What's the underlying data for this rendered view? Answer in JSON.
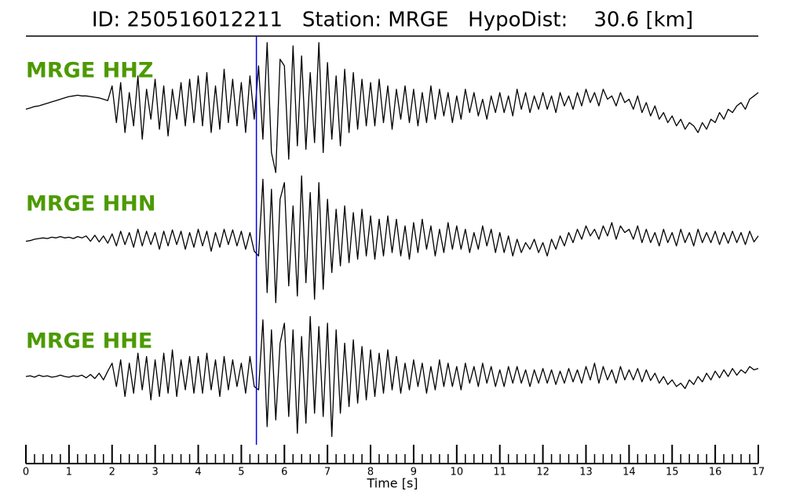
{
  "chart_data": {
    "type": "line",
    "title": "ID: 250516012211   Station: MRGE   HypoDist:    30.6 [km]",
    "x_label": "Time [s]",
    "xlim": [
      0,
      17
    ],
    "xticks": [
      0,
      1,
      2,
      3,
      4,
      5,
      6,
      7,
      8,
      9,
      10,
      11,
      12,
      13,
      14,
      15,
      16,
      17
    ],
    "xminor_step": 0.2,
    "ylim": [
      -100,
      100
    ],
    "vline_x": 5.35,
    "vline_color": "#0000ee",
    "label_color": "#4c9a00",
    "x": [
      0,
      0.1,
      0.2,
      0.3,
      0.4,
      0.5,
      0.6,
      0.7,
      0.8,
      0.9,
      1,
      1.1,
      1.2,
      1.3,
      1.4,
      1.5,
      1.6,
      1.7,
      1.8,
      1.9,
      2,
      2.1,
      2.2,
      2.3,
      2.4,
      2.5,
      2.6,
      2.7,
      2.8,
      2.9,
      3,
      3.1,
      3.2,
      3.3,
      3.4,
      3.5,
      3.6,
      3.7,
      3.8,
      3.9,
      4,
      4.1,
      4.2,
      4.3,
      4.4,
      4.5,
      4.6,
      4.7,
      4.8,
      4.9,
      5,
      5.1,
      5.2,
      5.3,
      5.4,
      5.5,
      5.6,
      5.7,
      5.8,
      5.9,
      6,
      6.1,
      6.2,
      6.3,
      6.4,
      6.5,
      6.6,
      6.7,
      6.8,
      6.9,
      7,
      7.1,
      7.2,
      7.3,
      7.4,
      7.5,
      7.6,
      7.7,
      7.8,
      7.9,
      8,
      8.1,
      8.2,
      8.3,
      8.4,
      8.5,
      8.6,
      8.7,
      8.8,
      8.9,
      9,
      9.1,
      9.2,
      9.3,
      9.4,
      9.5,
      9.6,
      9.7,
      9.8,
      9.9,
      10,
      10.1,
      10.2,
      10.3,
      10.4,
      10.5,
      10.6,
      10.7,
      10.8,
      10.9,
      11,
      11.1,
      11.2,
      11.3,
      11.4,
      11.5,
      11.6,
      11.7,
      11.8,
      11.9,
      12,
      12.1,
      12.2,
      12.3,
      12.4,
      12.5,
      12.6,
      12.7,
      12.8,
      12.9,
      13,
      13.1,
      13.2,
      13.3,
      13.4,
      13.5,
      13.6,
      13.7,
      13.8,
      13.9,
      14,
      14.1,
      14.2,
      14.3,
      14.4,
      14.5,
      14.6,
      14.7,
      14.8,
      14.9,
      15,
      15.1,
      15.2,
      15.3,
      15.4,
      15.5,
      15.6,
      15.7,
      15.8,
      15.9,
      16,
      16.1,
      16.2,
      16.3,
      16.4,
      16.5,
      16.6,
      16.7,
      16.8,
      16.9,
      17
    ],
    "series": [
      {
        "name": "MRGE HHZ",
        "color": "#000000",
        "values": [
          -5,
          -3,
          -1,
          0,
          2,
          4,
          6,
          8,
          10,
          12,
          14,
          15,
          16,
          15,
          15,
          14,
          13,
          12,
          10,
          8,
          30,
          -25,
          35,
          -40,
          20,
          -30,
          45,
          -50,
          25,
          -20,
          40,
          -35,
          30,
          -45,
          25,
          -20,
          35,
          -30,
          40,
          -25,
          45,
          -30,
          50,
          -40,
          30,
          -35,
          55,
          -25,
          40,
          -30,
          35,
          -40,
          45,
          -20,
          60,
          -50,
          95,
          -70,
          -100,
          70,
          60,
          -80,
          90,
          -60,
          75,
          -65,
          50,
          -55,
          95,
          -70,
          65,
          -50,
          45,
          -60,
          55,
          -40,
          50,
          -35,
          40,
          -30,
          35,
          -30,
          40,
          -25,
          30,
          -35,
          25,
          -20,
          30,
          -25,
          25,
          -30,
          20,
          -25,
          30,
          -20,
          25,
          -15,
          20,
          -25,
          15,
          -20,
          25,
          -10,
          20,
          -15,
          10,
          -20,
          15,
          -10,
          20,
          -10,
          15,
          -15,
          25,
          -5,
          20,
          -10,
          15,
          -5,
          20,
          -5,
          15,
          -10,
          20,
          0,
          15,
          -5,
          20,
          0,
          25,
          5,
          20,
          0,
          25,
          10,
          15,
          0,
          20,
          5,
          10,
          -5,
          15,
          -10,
          5,
          -15,
          0,
          -20,
          -10,
          -25,
          -15,
          -30,
          -20,
          -35,
          -25,
          -30,
          -40,
          -25,
          -35,
          -20,
          -25,
          -10,
          -20,
          -5,
          -10,
          0,
          5,
          -5,
          10,
          15,
          20
        ]
      },
      {
        "name": "MRGE HHN",
        "color": "#000000",
        "values": [
          -3,
          -2,
          0,
          1,
          2,
          1,
          3,
          2,
          4,
          2,
          3,
          1,
          4,
          2,
          5,
          -3,
          6,
          -4,
          5,
          -6,
          8,
          -10,
          12,
          -8,
          10,
          -12,
          15,
          -10,
          12,
          -8,
          10,
          -15,
          12,
          -10,
          14,
          -8,
          12,
          -15,
          10,
          -12,
          15,
          -10,
          12,
          -18,
          10,
          -12,
          15,
          -8,
          14,
          -10,
          12,
          -15,
          10,
          -18,
          -25,
          90,
          -80,
          75,
          -95,
          60,
          85,
          -70,
          50,
          -85,
          95,
          -65,
          70,
          -90,
          85,
          -75,
          60,
          -50,
          45,
          -40,
          50,
          -35,
          40,
          -30,
          45,
          -25,
          35,
          -30,
          30,
          -25,
          35,
          -20,
          30,
          -25,
          20,
          -30,
          25,
          -20,
          30,
          -15,
          20,
          -25,
          15,
          -20,
          25,
          -15,
          20,
          -15,
          15,
          -20,
          10,
          -15,
          20,
          -10,
          15,
          -20,
          10,
          -20,
          5,
          -25,
          0,
          -20,
          -5,
          -15,
          0,
          -20,
          -5,
          -25,
          0,
          -15,
          5,
          -10,
          10,
          -5,
          15,
          0,
          20,
          5,
          15,
          0,
          20,
          5,
          25,
          0,
          20,
          10,
          15,
          0,
          20,
          -5,
          15,
          -5,
          10,
          -10,
          15,
          -5,
          10,
          -10,
          15,
          -5,
          10,
          -10,
          15,
          -5,
          10,
          -5,
          12,
          -8,
          10,
          -6,
          12,
          -5,
          10,
          -8,
          12,
          -4,
          5
        ]
      },
      {
        "name": "MRGE HHE",
        "color": "#000000",
        "values": [
          0,
          1,
          -1,
          2,
          0,
          1,
          -1,
          0,
          2,
          0,
          -1,
          1,
          0,
          2,
          -2,
          3,
          -3,
          5,
          -5,
          8,
          20,
          -15,
          25,
          -30,
          20,
          -25,
          35,
          -20,
          30,
          -35,
          25,
          -30,
          35,
          -25,
          40,
          -30,
          25,
          -20,
          30,
          -25,
          30,
          -25,
          35,
          -20,
          25,
          -30,
          30,
          -20,
          25,
          -15,
          20,
          -25,
          30,
          -15,
          -20,
          85,
          -75,
          70,
          -65,
          50,
          80,
          -60,
          70,
          -85,
          60,
          -70,
          90,
          -55,
          75,
          -60,
          80,
          -90,
          70,
          -55,
          50,
          -45,
          55,
          -40,
          45,
          -35,
          40,
          -30,
          35,
          -25,
          40,
          -20,
          30,
          -25,
          20,
          -20,
          25,
          -15,
          20,
          -25,
          15,
          -20,
          25,
          -15,
          20,
          -15,
          15,
          -20,
          20,
          -10,
          15,
          -15,
          20,
          -10,
          15,
          -15,
          10,
          -15,
          15,
          -10,
          15,
          -10,
          10,
          -15,
          10,
          -10,
          12,
          -10,
          10,
          -12,
          8,
          -10,
          12,
          -8,
          10,
          -10,
          15,
          -5,
          20,
          -10,
          15,
          -5,
          10,
          -10,
          15,
          -5,
          10,
          -5,
          12,
          -8,
          10,
          -6,
          5,
          -10,
          0,
          -12,
          -5,
          -15,
          -10,
          -18,
          -5,
          -12,
          0,
          -8,
          5,
          -5,
          8,
          -2,
          10,
          0,
          12,
          2,
          10,
          5,
          15,
          10,
          12
        ]
      }
    ]
  }
}
